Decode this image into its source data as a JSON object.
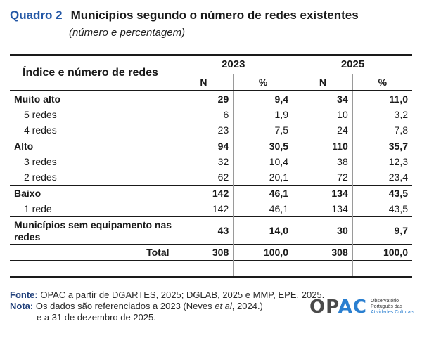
{
  "header": {
    "label": "Quadro 2",
    "title": "Municípios segundo o número de redes existentes",
    "subtitle": "(número e percentagem)"
  },
  "table": {
    "row_header": "Índice e número de redes",
    "years": [
      "2023",
      "2025"
    ],
    "sub_headers": [
      "N",
      "%",
      "N",
      "%"
    ],
    "rows": [
      {
        "label": "Muito alto",
        "values": [
          "29",
          "9,4",
          "34",
          "11,0"
        ]
      },
      {
        "label": "5 redes",
        "values": [
          "6",
          "1,9",
          "10",
          "3,2"
        ]
      },
      {
        "label": "4 redes",
        "values": [
          "23",
          "7,5",
          "24",
          "7,8"
        ]
      },
      {
        "label": "Alto",
        "values": [
          "94",
          "30,5",
          "110",
          "35,7"
        ]
      },
      {
        "label": "3 redes",
        "values": [
          "32",
          "10,4",
          "38",
          "12,3"
        ]
      },
      {
        "label": "2 redes",
        "values": [
          "62",
          "20,1",
          "72",
          "23,4"
        ]
      },
      {
        "label": "Baixo",
        "values": [
          "142",
          "46,1",
          "134",
          "43,5"
        ]
      },
      {
        "label": "1 rede",
        "values": [
          "142",
          "46,1",
          "134",
          "43,5"
        ]
      },
      {
        "label": "Municípios sem equipamento nas redes",
        "values": [
          "43",
          "14,0",
          "30",
          "9,7"
        ]
      },
      {
        "label": "Total",
        "values": [
          "308",
          "100,0",
          "308",
          "100,0"
        ]
      }
    ]
  },
  "footer": {
    "source_label": "Fonte:",
    "source_text": "OPAC a partir de DGARTES, 2025; DGLAB, 2025 e MMP, EPE, 2025.",
    "note_label": "Nota:",
    "note_pre": "Os dados são referenciados a 2023 (Neves ",
    "note_italic": "et al",
    "note_post": ", 2024.)",
    "note_line2": "e a 31 de dezembro de 2025."
  },
  "logo": {
    "word_op": "OP",
    "word_ac": "AC",
    "line1": "Observatório",
    "line2": "Português das",
    "line3": "Atividades Culturais",
    "accent_color": "#2a7fd0"
  }
}
